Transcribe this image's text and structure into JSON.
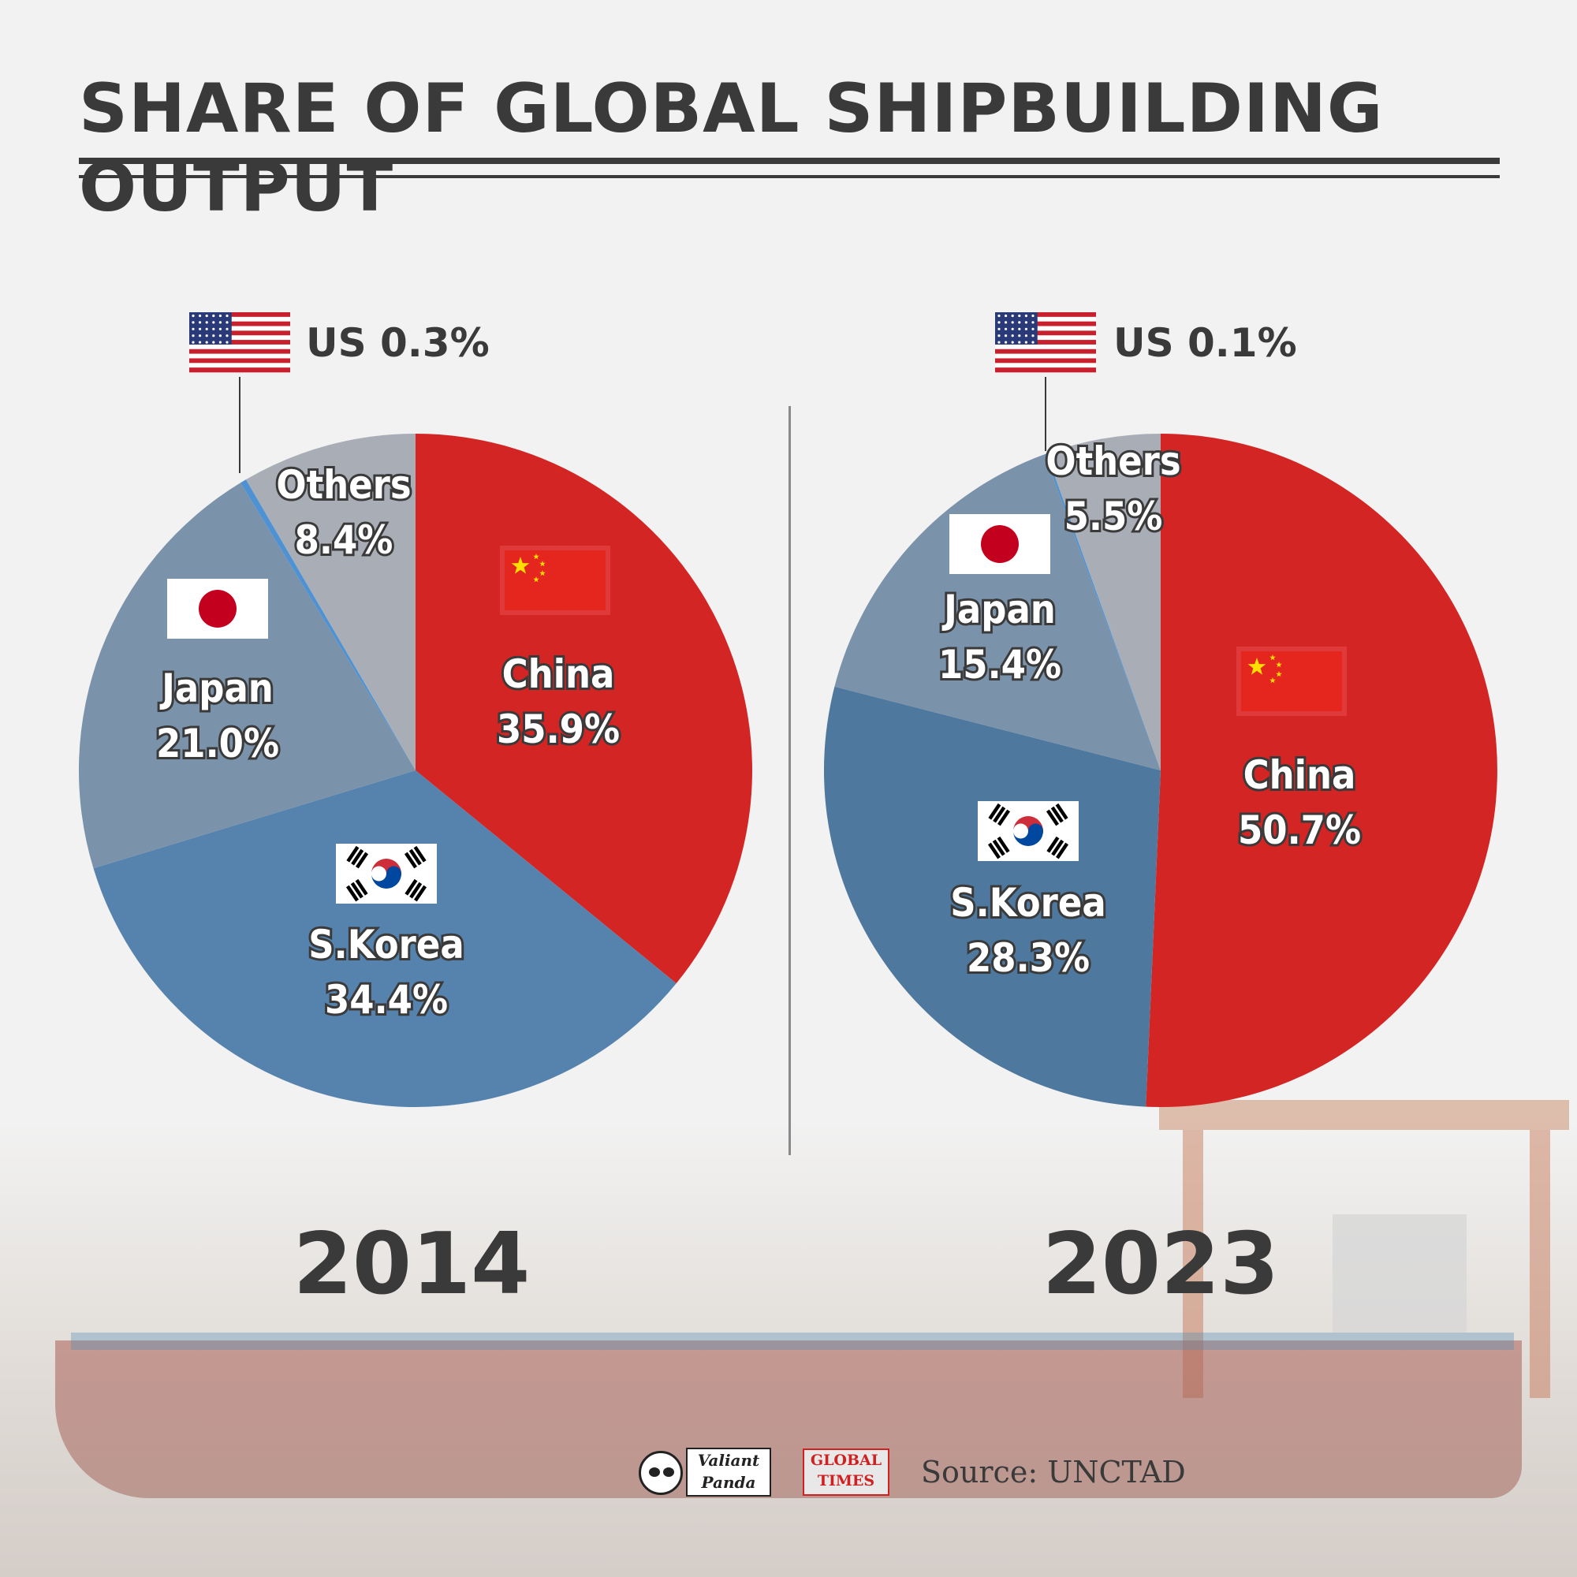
{
  "title": "SHARE OF GLOBAL SHIPBUILDING OUTPUT",
  "colors": {
    "China": "#d42525",
    "S.Korea_2014": "#5683ad",
    "S.Korea_2023": "#4f789e",
    "Japan": "#7a92aa",
    "Others": "#a9aeb6",
    "US": "#4f92d4",
    "text": "#3a3a3a"
  },
  "chart_data": [
    {
      "type": "pie",
      "title": "2014",
      "slices": [
        {
          "name": "China",
          "value": 35.9,
          "label": "35.9%",
          "flag": "china-flag"
        },
        {
          "name": "S.Korea",
          "value": 34.4,
          "label": "34.4%",
          "flag": "south-korea-flag"
        },
        {
          "name": "Japan",
          "value": 21.0,
          "label": "21.0%",
          "flag": "japan-flag"
        },
        {
          "name": "US",
          "value": 0.3,
          "label": "0.3%",
          "flag": "us-flag"
        },
        {
          "name": "Others",
          "value": 8.4,
          "label": "8.4%"
        }
      ]
    },
    {
      "type": "pie",
      "title": "2023",
      "slices": [
        {
          "name": "China",
          "value": 50.7,
          "label": "50.7%",
          "flag": "china-flag"
        },
        {
          "name": "S.Korea",
          "value": 28.3,
          "label": "28.3%",
          "flag": "south-korea-flag"
        },
        {
          "name": "Japan",
          "value": 15.4,
          "label": "15.4%",
          "flag": "japan-flag"
        },
        {
          "name": "US",
          "value": 0.1,
          "label": "0.1%",
          "flag": "us-flag"
        },
        {
          "name": "Others",
          "value": 5.5,
          "label": "5.5%"
        }
      ]
    }
  ],
  "footer": {
    "logo1_line1": "Valiant",
    "logo1_line2": "Panda",
    "logo2_line1": "GLOBAL",
    "logo2_line2": "TIMES",
    "source": "Source: UNCTAD"
  }
}
